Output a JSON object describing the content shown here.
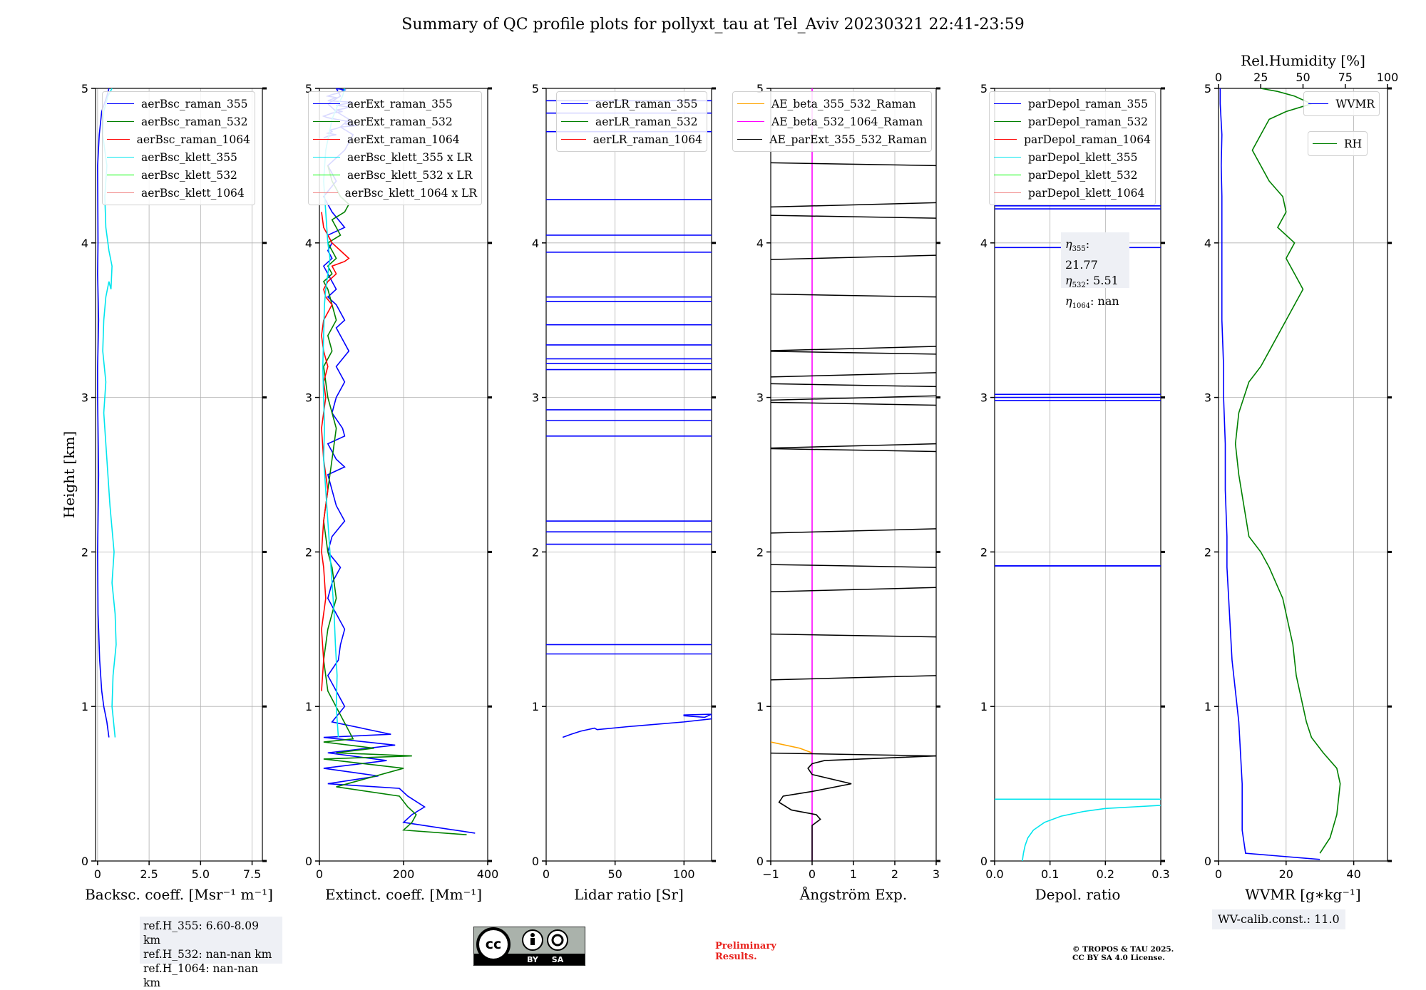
{
  "title": "Summary of QC profile plots for pollyxt_tau at Tel_Aviv 20230321 22:41-23:59",
  "ylabel": "Height [km]",
  "yticks": [
    "0",
    "1",
    "2",
    "3",
    "4",
    "5"
  ],
  "chart_data": [
    {
      "type": "line",
      "id": "bsc",
      "xlabel": "Backsc. coeff. [Msr⁻¹ m⁻¹]",
      "xlim": [
        -0.1,
        8.0
      ],
      "xticks": [
        0,
        2.5,
        5.0,
        7.5
      ],
      "xticklabels": [
        "0",
        "2.5",
        "5.0",
        "7.5"
      ],
      "ylim": [
        0,
        5
      ],
      "series": [
        {
          "name": "aerBsc_raman_355",
          "color": "#0000ff",
          "x": [
            0.55,
            0.45,
            0.3,
            0.2,
            0.1,
            0.05,
            0.02,
            0.0,
            0.05,
            0.0,
            0.0,
            0.05,
            0.0,
            0.02,
            0.0,
            0.08,
            0.2,
            0.45,
            0.55
          ],
          "y": [
            0.8,
            0.9,
            1.0,
            1.1,
            1.3,
            1.5,
            1.6,
            2.0,
            2.5,
            3.0,
            3.2,
            3.5,
            3.8,
            4.0,
            4.5,
            4.7,
            4.85,
            4.95,
            5.0
          ]
        },
        {
          "name": "aerBsc_raman_532",
          "color": "#008000",
          "x": [],
          "y": []
        },
        {
          "name": "aerBsc_raman_1064",
          "color": "#ff0000",
          "x": [],
          "y": []
        },
        {
          "name": "aerBsc_klett_355",
          "color": "#00e5ee",
          "x": [
            0.85,
            0.7,
            0.75,
            0.9,
            0.85,
            0.7,
            0.8,
            0.6,
            0.45,
            0.3,
            0.4,
            0.25,
            0.3,
            0.4,
            0.55,
            0.65,
            0.7,
            0.55,
            0.4,
            0.35,
            0.45,
            0.25,
            0.3,
            0.5,
            0.7
          ],
          "y": [
            0.8,
            1.0,
            1.2,
            1.4,
            1.6,
            1.8,
            2.0,
            2.3,
            2.6,
            2.9,
            3.1,
            3.3,
            3.5,
            3.65,
            3.75,
            3.7,
            3.85,
            3.95,
            4.1,
            4.3,
            4.5,
            4.7,
            4.85,
            4.95,
            5.0
          ]
        },
        {
          "name": "aerBsc_klett_532",
          "color": "#00ff00",
          "x": [],
          "y": []
        },
        {
          "name": "aerBsc_klett_1064",
          "color": "#f08080",
          "x": [],
          "y": []
        }
      ]
    },
    {
      "type": "line",
      "id": "ext",
      "xlabel": "Extinct. coeff. [Mm⁻¹]",
      "xlim": [
        0,
        400
      ],
      "xticks": [
        0,
        200,
        400
      ],
      "xticklabels": [
        "0",
        "200",
        "400"
      ],
      "ylim": [
        0,
        5
      ],
      "series": [
        {
          "name": "aerExt_raman_355",
          "color": "#0000ff",
          "x": [
            370,
            200,
            220,
            250,
            210,
            190,
            20,
            140,
            10,
            160,
            20,
            180,
            10,
            170,
            30,
            60,
            40,
            20,
            45,
            50,
            60,
            40,
            20,
            30,
            50,
            20,
            30,
            60,
            40,
            30,
            20,
            60,
            40,
            20,
            60,
            55,
            30,
            40,
            50,
            60,
            40,
            70,
            50,
            40,
            60,
            40,
            20,
            40,
            30,
            20,
            10,
            30,
            20,
            30,
            20,
            60,
            30,
            10,
            40,
            20,
            60,
            80,
            50,
            70,
            40,
            20,
            50,
            40,
            60,
            45,
            30,
            20,
            40,
            30,
            20,
            80,
            60,
            40,
            70,
            60,
            40,
            55,
            30,
            20,
            10,
            20,
            40,
            60,
            80,
            60,
            90,
            50,
            40,
            25,
            30,
            20,
            40,
            20,
            10
          ],
          "y": [
            0.18,
            0.25,
            0.3,
            0.35,
            0.42,
            0.47,
            0.5,
            0.55,
            0.6,
            0.65,
            0.7,
            0.75,
            0.8,
            0.82,
            0.9,
            1.0,
            1.1,
            1.2,
            1.3,
            1.4,
            1.5,
            1.6,
            1.7,
            1.8,
            1.9,
            2.0,
            2.1,
            2.2,
            2.3,
            2.4,
            2.5,
            2.55,
            2.6,
            2.7,
            2.75,
            2.8,
            2.9,
            3.0,
            3.05,
            3.1,
            3.2,
            3.3,
            3.4,
            3.45,
            3.5,
            3.6,
            3.65,
            3.7,
            3.75,
            3.8,
            3.85,
            3.9,
            3.95,
            4.0,
            4.05,
            4.1,
            4.2,
            4.3,
            4.4,
            4.5,
            4.6,
            4.7,
            4.75,
            4.8,
            4.85,
            4.9,
            4.95,
            5.0,
            4.99,
            4.97,
            4.96,
            4.95,
            4.94,
            4.93,
            4.92,
            4.91,
            4.9,
            4.89,
            4.88,
            4.87,
            4.86,
            4.85,
            4.84,
            4.83,
            4.82,
            4.81,
            4.8,
            4.79,
            4.78,
            4.77,
            4.76,
            4.75,
            4.74,
            4.73,
            4.72,
            4.71,
            4.7,
            4.69,
            4.68
          ]
        },
        {
          "name": "aerExt_raman_532",
          "color": "#008000",
          "x": [
            350,
            200,
            220,
            230,
            210,
            190,
            40,
            200,
            10,
            220,
            40,
            130,
            10,
            80,
            20,
            10,
            20,
            40,
            30,
            20,
            10,
            20,
            30,
            40,
            20,
            10,
            30,
            20,
            40,
            30,
            20,
            10,
            30,
            20,
            40,
            30,
            20,
            50,
            40,
            30,
            60,
            70,
            50,
            40,
            30,
            20
          ],
          "y": [
            0.17,
            0.2,
            0.25,
            0.3,
            0.35,
            0.42,
            0.48,
            0.6,
            0.66,
            0.68,
            0.7,
            0.73,
            0.77,
            0.79,
            1.1,
            1.3,
            1.5,
            1.7,
            1.9,
            2.0,
            2.2,
            2.4,
            2.6,
            2.8,
            3.0,
            3.2,
            3.3,
            3.4,
            3.5,
            3.6,
            3.7,
            3.75,
            3.8,
            3.85,
            3.9,
            3.95,
            4.0,
            4.05,
            4.1,
            4.15,
            4.2,
            4.25,
            4.3,
            4.35,
            4.4,
            4.5
          ]
        },
        {
          "name": "aerExt_raman_1064",
          "color": "#ff0000",
          "x": [
            5,
            10,
            5,
            15,
            10,
            5,
            10,
            20,
            10,
            5,
            15,
            10,
            20,
            10,
            5,
            10,
            30,
            15,
            10,
            20,
            40,
            30,
            60,
            70,
            50,
            30,
            20,
            10,
            5
          ],
          "y": [
            1.1,
            1.3,
            1.5,
            1.7,
            1.9,
            2.0,
            2.2,
            2.4,
            2.6,
            2.8,
            3.0,
            3.1,
            3.2,
            3.3,
            3.4,
            3.5,
            3.6,
            3.65,
            3.7,
            3.75,
            3.8,
            3.85,
            3.88,
            3.9,
            3.95,
            4.0,
            4.05,
            4.1,
            4.2
          ]
        },
        {
          "name": "aerBsc_klett_355 x LR",
          "color": "#00e5ee",
          "x": [
            45,
            40,
            42,
            38,
            35,
            30,
            25,
            20,
            15,
            10,
            12,
            10,
            8,
            10,
            12,
            15,
            20,
            25,
            20,
            15,
            10,
            15,
            30,
            45,
            55,
            60
          ],
          "y": [
            0.8,
            1.0,
            1.2,
            1.4,
            1.6,
            1.8,
            2.0,
            2.2,
            2.4,
            2.6,
            2.8,
            3.0,
            3.2,
            3.4,
            3.6,
            3.7,
            3.8,
            3.9,
            4.0,
            4.2,
            4.4,
            4.6,
            4.8,
            4.9,
            4.95,
            5.0
          ]
        },
        {
          "name": "aerBsc_klett_532 x LR",
          "color": "#00ff00",
          "x": [],
          "y": []
        },
        {
          "name": "aerBsc_klett_1064 x LR",
          "color": "#f08080",
          "x": [],
          "y": []
        }
      ]
    },
    {
      "type": "line",
      "id": "lr",
      "xlabel": "Lidar ratio [Sr]",
      "xlim": [
        0,
        120
      ],
      "xticks": [
        0,
        50,
        100
      ],
      "xticklabels": [
        "0",
        "50",
        "100"
      ],
      "ylim": [
        0,
        5
      ],
      "series": [
        {
          "name": "aerLR_raman_355",
          "color": "#0000ff",
          "x": [
            12,
            18,
            25,
            35,
            37,
            60,
            100,
            120,
            120,
            115,
            100,
            100,
            120
          ],
          "y": [
            0.8,
            0.82,
            0.84,
            0.86,
            0.85,
            0.87,
            0.9,
            0.92,
            0.95,
            0.93,
            0.94,
            0.945,
            0.95
          ]
        },
        {
          "name": "aerLR_raman_532",
          "color": "#008000",
          "x": [],
          "y": []
        },
        {
          "name": "aerLR_raman_1064",
          "color": "#ff0000",
          "x": [],
          "y": []
        }
      ]
    },
    {
      "type": "line",
      "id": "ae",
      "xlabel": "Ångström Exp.",
      "xlim": [
        -1,
        3
      ],
      "xticks": [
        -1,
        0,
        1,
        2,
        3
      ],
      "xticklabels": [
        "−1",
        "0",
        "1",
        "2",
        "3"
      ],
      "ylim": [
        0,
        5
      ],
      "series": [
        {
          "name": "AE_beta_355_532_Raman",
          "color": "#ffa500",
          "x": [
            -1.0,
            -0.3,
            0.0
          ],
          "y": [
            0.77,
            0.73,
            0.7
          ]
        },
        {
          "name": "AE_beta_532_1064_Raman",
          "color": "#ff00ff",
          "x": [
            0.0,
            0.0
          ],
          "y": [
            0.0,
            5.0
          ]
        },
        {
          "name": "AE_parExt_355_532_Raman",
          "color": "#000000",
          "x": [
            0.0,
            0.0,
            0.2,
            0.1,
            -0.5,
            -0.8,
            -0.7,
            0.0,
            0.95,
            0.0,
            -0.1,
            0.0,
            0.3,
            3.0
          ],
          "y": [
            0.0,
            0.23,
            0.27,
            0.3,
            0.33,
            0.38,
            0.42,
            0.45,
            0.5,
            0.56,
            0.6,
            0.63,
            0.65,
            0.68
          ]
        }
      ]
    },
    {
      "type": "line",
      "id": "depol",
      "xlabel": "Depol. ratio",
      "xlim": [
        0.0,
        0.3
      ],
      "xticks": [
        0.0,
        0.1,
        0.2,
        0.3
      ],
      "xticklabels": [
        "0.0",
        "0.1",
        "0.2",
        "0.3"
      ],
      "ylim": [
        0,
        5
      ],
      "series": [
        {
          "name": "parDepol_raman_355",
          "color": "#0000ff",
          "x": [
            0.0,
            0.3
          ],
          "y": [
            1.91,
            1.91
          ]
        },
        {
          "name": "parDepol_raman_532",
          "color": "#008000",
          "x": [],
          "y": []
        },
        {
          "name": "parDepol_raman_1064",
          "color": "#ff0000",
          "x": [],
          "y": []
        },
        {
          "name": "parDepol_klett_355",
          "color": "#00e5ee",
          "x": [
            0.05,
            0.052,
            0.055,
            0.06,
            0.07,
            0.09,
            0.12,
            0.16,
            0.2,
            0.25,
            0.3
          ],
          "y": [
            0.0,
            0.05,
            0.1,
            0.15,
            0.2,
            0.25,
            0.29,
            0.32,
            0.34,
            0.35,
            0.36
          ]
        },
        {
          "name": "parDepol_klett_532",
          "color": "#00ff00",
          "x": [],
          "y": []
        },
        {
          "name": "parDepol_klett_1064",
          "color": "#f08080",
          "x": [],
          "y": []
        }
      ]
    },
    {
      "type": "line",
      "id": "wv",
      "xlabel": "WVMR [g∗kg⁻¹]",
      "x2label": "Rel.Humidity [%]",
      "xlim": [
        0,
        50
      ],
      "xticks": [
        0,
        20,
        40
      ],
      "xticklabels": [
        "0",
        "20",
        "40"
      ],
      "x2lim": [
        0,
        100
      ],
      "x2ticks": [
        0,
        25,
        50,
        75,
        100
      ],
      "x2ticklabels": [
        "0",
        "25",
        "50",
        "75",
        "100"
      ],
      "ylim": [
        0,
        5
      ],
      "series": [
        {
          "name": "WVMR",
          "color": "#0000ff",
          "x": [
            30,
            8,
            7,
            7,
            6.5,
            6,
            5,
            4,
            3.5,
            3,
            2.5,
            2.5,
            2,
            2,
            1.5,
            1.5,
            1,
            1,
            1,
            1,
            1,
            0.8,
            1,
            0.5,
            0.5
          ],
          "y": [
            0.01,
            0.05,
            0.2,
            0.5,
            0.7,
            0.9,
            1.1,
            1.3,
            1.5,
            1.7,
            1.9,
            2.1,
            2.4,
            2.7,
            3.0,
            3.2,
            3.5,
            3.7,
            3.9,
            4.1,
            4.3,
            4.5,
            4.7,
            4.9,
            5.0
          ]
        },
        {
          "name": "RH",
          "color": "#008000",
          "x": [
            60,
            66,
            70,
            72,
            70,
            62,
            55,
            52,
            50,
            48,
            46,
            45,
            44,
            42,
            40,
            38,
            34,
            30,
            25,
            18,
            15,
            12,
            10,
            12,
            15,
            18,
            25,
            30,
            35,
            40,
            45,
            50,
            45,
            40,
            45,
            35,
            40,
            38,
            30,
            25,
            20,
            25,
            30,
            40,
            55,
            45,
            35,
            25
          ],
          "y": [
            0.05,
            0.15,
            0.3,
            0.5,
            0.6,
            0.7,
            0.8,
            0.9,
            1.0,
            1.1,
            1.2,
            1.3,
            1.4,
            1.5,
            1.6,
            1.7,
            1.8,
            1.9,
            2.0,
            2.1,
            2.3,
            2.5,
            2.7,
            2.9,
            3.0,
            3.1,
            3.2,
            3.3,
            3.4,
            3.5,
            3.6,
            3.7,
            3.8,
            3.9,
            4.0,
            4.1,
            4.2,
            4.3,
            4.4,
            4.5,
            4.6,
            4.7,
            4.8,
            4.85,
            4.9,
            4.95,
            4.98,
            5.0
          ]
        }
      ]
    }
  ],
  "annotations": {
    "ref_lines": [
      "ref.H_355: 6.60-8.09 km",
      "ref.H_532: nan-nan km",
      "ref.H_1064: nan-nan km"
    ],
    "eta_label": "η",
    "eta_subs": [
      "355",
      "532",
      "1064"
    ],
    "eta_values": [
      "21.77",
      "5.51",
      "nan"
    ],
    "wv_calib": "WV-calib.const.: 11.0",
    "license_badge": [
      "cc",
      "BY",
      "SA"
    ],
    "preliminary": [
      "Preliminary",
      "Results."
    ],
    "copyright": [
      "© TROPOS & TAU 2025.",
      "CC BY SA 4.0 License."
    ]
  },
  "lr_horizontal_levels": [
    4.92,
    4.84,
    4.72,
    4.28,
    4.05,
    3.94,
    3.65,
    3.62,
    3.47,
    3.34,
    3.25,
    3.22,
    3.18,
    2.92,
    2.85,
    2.75,
    2.2,
    2.13,
    2.05,
    1.4,
    1.34
  ],
  "ae_step_levels": [
    0.68,
    1.2,
    1.45,
    1.77,
    1.9,
    2.15,
    2.65,
    2.7,
    2.95,
    3.01,
    3.07,
    3.16,
    3.28,
    3.33,
    3.65,
    3.92,
    4.16,
    4.26,
    4.5
  ],
  "depol_horizontal_levels": [
    0.4,
    1.91,
    2.98,
    3.0,
    3.02,
    3.97,
    4.22,
    4.24
  ]
}
